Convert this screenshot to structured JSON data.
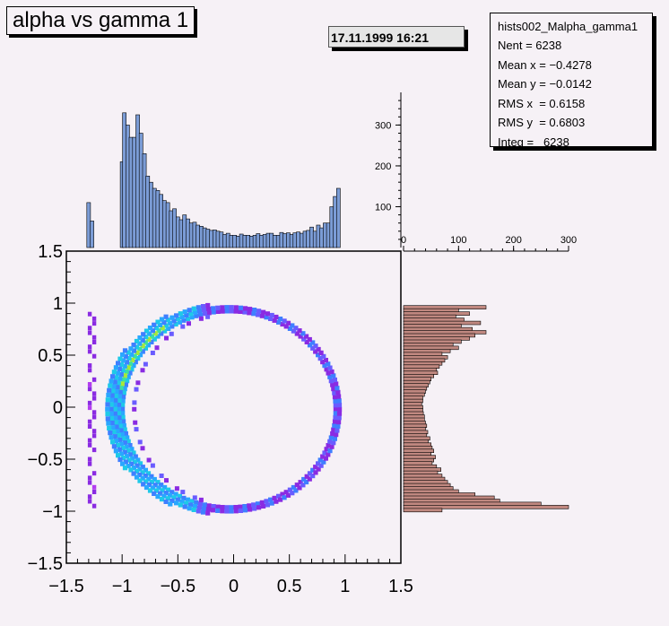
{
  "title": "alpha vs gamma 1",
  "date": "17.11.1999 16:21",
  "stats": {
    "name": "hists002_Malpha_gamma1",
    "lines": [
      "Nent = 6238",
      "Mean x = −0.4278",
      "Mean y = −0.0142",
      "RMS x  = 0.6158",
      "RMS y  = 0.6803",
      "Integ =   6238"
    ]
  },
  "colors": {
    "top_hist": "#7b9cd6",
    "right_hist": "#c08880",
    "background": "#f6f1f6"
  },
  "chart_data": [
    {
      "type": "heatmap",
      "xlim": [
        -1.5,
        1.5
      ],
      "ylim": [
        -1.5,
        1.5
      ],
      "xticks": [
        "−1.5",
        "−1",
        "−0.5",
        "0",
        "0.5",
        "1",
        "1.5"
      ],
      "yticks": [
        "1.5",
        "1",
        "0.5",
        "0",
        "−0.5",
        "−1",
        "−1.5"
      ],
      "ring": {
        "center": [
          -0.04,
          -0.02
        ],
        "radius_x": 0.99,
        "radius_y": 0.98
      },
      "stray_column_x": -1.27,
      "stray_column_y": [
        -0.95,
        0.95
      ]
    },
    {
      "type": "bar",
      "orientation": "vertical",
      "x_range": [
        -1.5,
        1.5
      ],
      "y_max": 380,
      "yticks": [
        "100",
        "200",
        "300"
      ],
      "bins": [
        {
          "x": -1.3,
          "v": 110
        },
        {
          "x": -1.27,
          "v": 65
        },
        {
          "x": -1.0,
          "v": 210
        },
        {
          "x": -0.98,
          "v": 330
        },
        {
          "x": -0.95,
          "v": 300
        },
        {
          "x": -0.92,
          "v": 270
        },
        {
          "x": -0.89,
          "v": 270
        },
        {
          "x": -0.86,
          "v": 325
        },
        {
          "x": -0.83,
          "v": 280
        },
        {
          "x": -0.8,
          "v": 230
        },
        {
          "x": -0.77,
          "v": 175
        },
        {
          "x": -0.74,
          "v": 160
        },
        {
          "x": -0.71,
          "v": 145
        },
        {
          "x": -0.68,
          "v": 140
        },
        {
          "x": -0.65,
          "v": 130
        },
        {
          "x": -0.62,
          "v": 115
        },
        {
          "x": -0.59,
          "v": 110
        },
        {
          "x": -0.56,
          "v": 90
        },
        {
          "x": -0.53,
          "v": 95
        },
        {
          "x": -0.5,
          "v": 75
        },
        {
          "x": -0.47,
          "v": 68
        },
        {
          "x": -0.44,
          "v": 80
        },
        {
          "x": -0.41,
          "v": 70
        },
        {
          "x": -0.38,
          "v": 60
        },
        {
          "x": -0.35,
          "v": 62
        },
        {
          "x": -0.32,
          "v": 55
        },
        {
          "x": -0.29,
          "v": 52
        },
        {
          "x": -0.26,
          "v": 48
        },
        {
          "x": -0.23,
          "v": 45
        },
        {
          "x": -0.2,
          "v": 42
        },
        {
          "x": -0.17,
          "v": 43
        },
        {
          "x": -0.14,
          "v": 40
        },
        {
          "x": -0.11,
          "v": 38
        },
        {
          "x": -0.08,
          "v": 32
        },
        {
          "x": -0.05,
          "v": 35
        },
        {
          "x": -0.02,
          "v": 30
        },
        {
          "x": 0.01,
          "v": 30
        },
        {
          "x": 0.04,
          "v": 28
        },
        {
          "x": 0.07,
          "v": 33
        },
        {
          "x": 0.1,
          "v": 30
        },
        {
          "x": 0.13,
          "v": 30
        },
        {
          "x": 0.16,
          "v": 28
        },
        {
          "x": 0.19,
          "v": 30
        },
        {
          "x": 0.22,
          "v": 34
        },
        {
          "x": 0.25,
          "v": 30
        },
        {
          "x": 0.28,
          "v": 32
        },
        {
          "x": 0.31,
          "v": 35
        },
        {
          "x": 0.34,
          "v": 35
        },
        {
          "x": 0.37,
          "v": 30
        },
        {
          "x": 0.4,
          "v": 30
        },
        {
          "x": 0.43,
          "v": 37
        },
        {
          "x": 0.46,
          "v": 34
        },
        {
          "x": 0.49,
          "v": 36
        },
        {
          "x": 0.52,
          "v": 32
        },
        {
          "x": 0.55,
          "v": 36
        },
        {
          "x": 0.58,
          "v": 38
        },
        {
          "x": 0.61,
          "v": 35
        },
        {
          "x": 0.64,
          "v": 40
        },
        {
          "x": 0.67,
          "v": 42
        },
        {
          "x": 0.7,
          "v": 50
        },
        {
          "x": 0.73,
          "v": 40
        },
        {
          "x": 0.76,
          "v": 55
        },
        {
          "x": 0.79,
          "v": 48
        },
        {
          "x": 0.82,
          "v": 60
        },
        {
          "x": 0.85,
          "v": 60
        },
        {
          "x": 0.88,
          "v": 100
        },
        {
          "x": 0.91,
          "v": 125
        },
        {
          "x": 0.94,
          "v": 145
        }
      ]
    },
    {
      "type": "bar",
      "orientation": "horizontal",
      "y_range": [
        -1.5,
        1.5
      ],
      "x_max": 300,
      "xticks": [
        "0",
        "100",
        "200",
        "300"
      ],
      "bins": [
        {
          "y": 0.96,
          "v": 150
        },
        {
          "y": 0.93,
          "v": 100
        },
        {
          "y": 0.9,
          "v": 120
        },
        {
          "y": 0.87,
          "v": 95
        },
        {
          "y": 0.84,
          "v": 110
        },
        {
          "y": 0.81,
          "v": 140
        },
        {
          "y": 0.78,
          "v": 105
        },
        {
          "y": 0.75,
          "v": 125
        },
        {
          "y": 0.72,
          "v": 150
        },
        {
          "y": 0.69,
          "v": 130
        },
        {
          "y": 0.66,
          "v": 120
        },
        {
          "y": 0.63,
          "v": 105
        },
        {
          "y": 0.6,
          "v": 90
        },
        {
          "y": 0.57,
          "v": 100
        },
        {
          "y": 0.54,
          "v": 85
        },
        {
          "y": 0.51,
          "v": 70
        },
        {
          "y": 0.48,
          "v": 80
        },
        {
          "y": 0.45,
          "v": 75
        },
        {
          "y": 0.42,
          "v": 70
        },
        {
          "y": 0.39,
          "v": 65
        },
        {
          "y": 0.36,
          "v": 60
        },
        {
          "y": 0.33,
          "v": 62
        },
        {
          "y": 0.3,
          "v": 55
        },
        {
          "y": 0.27,
          "v": 50
        },
        {
          "y": 0.24,
          "v": 48
        },
        {
          "y": 0.21,
          "v": 45
        },
        {
          "y": 0.18,
          "v": 42
        },
        {
          "y": 0.15,
          "v": 40
        },
        {
          "y": 0.12,
          "v": 38
        },
        {
          "y": 0.09,
          "v": 35
        },
        {
          "y": 0.06,
          "v": 35
        },
        {
          "y": 0.03,
          "v": 33
        },
        {
          "y": 0.0,
          "v": 35
        },
        {
          "y": -0.03,
          "v": 35
        },
        {
          "y": -0.06,
          "v": 36
        },
        {
          "y": -0.09,
          "v": 38
        },
        {
          "y": -0.12,
          "v": 38
        },
        {
          "y": -0.15,
          "v": 40
        },
        {
          "y": -0.18,
          "v": 42
        },
        {
          "y": -0.21,
          "v": 40
        },
        {
          "y": -0.24,
          "v": 44
        },
        {
          "y": -0.27,
          "v": 42
        },
        {
          "y": -0.3,
          "v": 48
        },
        {
          "y": -0.33,
          "v": 45
        },
        {
          "y": -0.36,
          "v": 50
        },
        {
          "y": -0.39,
          "v": 52
        },
        {
          "y": -0.42,
          "v": 55
        },
        {
          "y": -0.45,
          "v": 50
        },
        {
          "y": -0.48,
          "v": 58
        },
        {
          "y": -0.51,
          "v": 55
        },
        {
          "y": -0.54,
          "v": 52
        },
        {
          "y": -0.57,
          "v": 60
        },
        {
          "y": -0.6,
          "v": 68
        },
        {
          "y": -0.63,
          "v": 62
        },
        {
          "y": -0.66,
          "v": 70
        },
        {
          "y": -0.69,
          "v": 75
        },
        {
          "y": -0.72,
          "v": 80
        },
        {
          "y": -0.75,
          "v": 85
        },
        {
          "y": -0.78,
          "v": 90
        },
        {
          "y": -0.81,
          "v": 100
        },
        {
          "y": -0.84,
          "v": 130
        },
        {
          "y": -0.87,
          "v": 165
        },
        {
          "y": -0.9,
          "v": 175
        },
        {
          "y": -0.93,
          "v": 250
        },
        {
          "y": -0.96,
          "v": 300
        },
        {
          "y": -0.99,
          "v": 70
        }
      ]
    }
  ]
}
